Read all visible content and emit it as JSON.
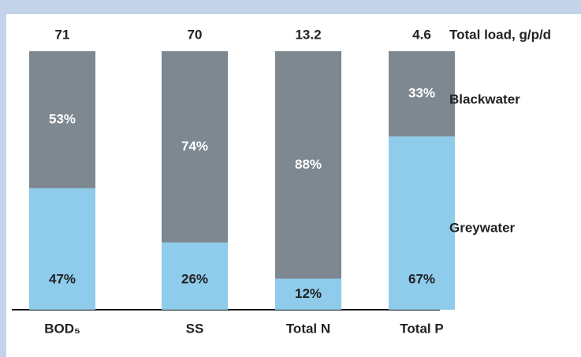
{
  "chart_data": {
    "type": "stacked_bar_percent",
    "categories": [
      "BOD₅",
      "SS",
      "Total N",
      "Total P"
    ],
    "totals_label": "Total load, g/p/d",
    "totals": [
      71,
      70,
      13.2,
      4.6
    ],
    "series": [
      {
        "name": "Greywater",
        "color": "#8fcbeb",
        "label_color": "#222222",
        "values": [
          47,
          26,
          12,
          67
        ],
        "value_labels": [
          "47%",
          "26%",
          "12%",
          "67%"
        ]
      },
      {
        "name": "Blackwater",
        "color": "#7d8890",
        "label_color": "#ffffff",
        "values": [
          53,
          74,
          88,
          33
        ],
        "value_labels": [
          "53%",
          "74%",
          "88%",
          "33%"
        ]
      }
    ],
    "ylim": [
      0,
      100
    ]
  }
}
